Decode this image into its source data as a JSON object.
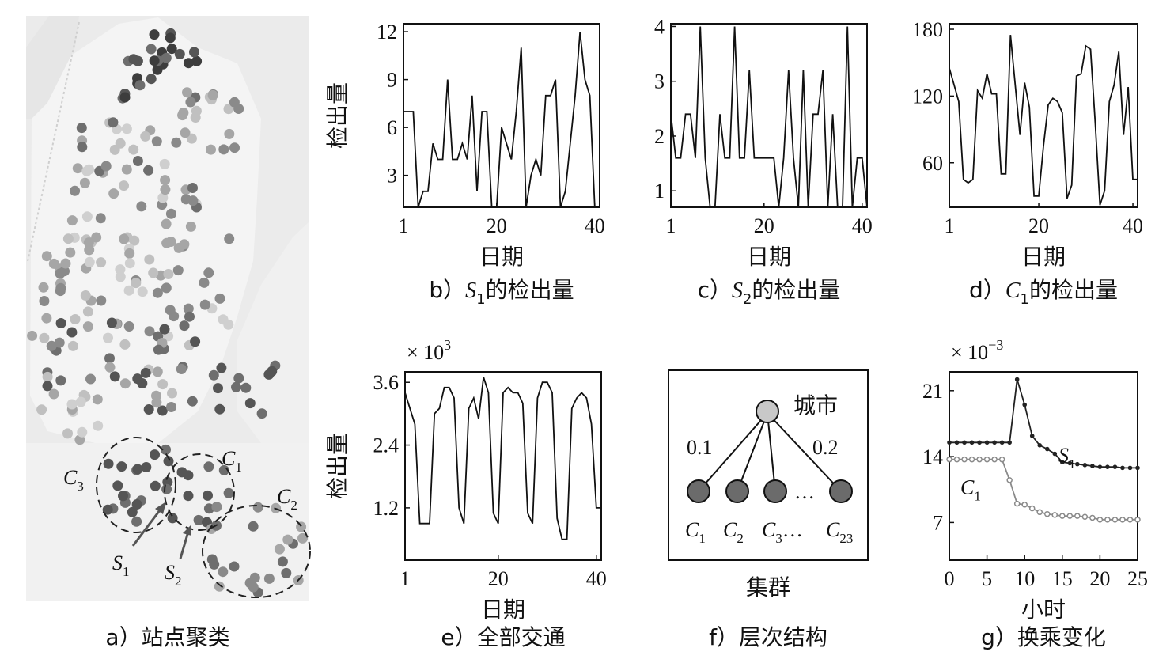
{
  "panel_a": {
    "caption": "a）站点聚类",
    "labels": [
      {
        "name": "C",
        "sub": "3"
      },
      {
        "name": "C",
        "sub": "1"
      },
      {
        "name": "C",
        "sub": "2"
      },
      {
        "name": "S",
        "sub": "1"
      },
      {
        "name": "S",
        "sub": "2"
      }
    ]
  },
  "chart_data": [
    {
      "id": "b",
      "type": "line",
      "caption": {
        "pre": "b）",
        "var": "S",
        "sub": "1",
        "post": "的检出量"
      },
      "xlabel": "日期",
      "ylabel": "检出量",
      "xlim": [
        1,
        41
      ],
      "ylim": [
        1,
        12.5
      ],
      "xticks": [
        1,
        20,
        40
      ],
      "yticks": [
        3,
        6,
        9,
        12
      ],
      "x": [
        1,
        2,
        3,
        4,
        5,
        6,
        7,
        8,
        9,
        10,
        11,
        12,
        13,
        14,
        15,
        16,
        17,
        18,
        19,
        20,
        21,
        22,
        23,
        24,
        25,
        26,
        27,
        28,
        29,
        30,
        31,
        32,
        33,
        34,
        35,
        36,
        37,
        38,
        39,
        40,
        41
      ],
      "values": [
        7,
        7,
        7,
        1,
        2,
        2,
        5,
        4,
        4,
        9,
        4,
        4,
        5,
        4,
        8,
        2,
        7,
        7,
        1,
        1,
        6,
        5,
        4,
        7,
        11,
        1,
        3,
        4,
        3,
        8,
        8,
        9,
        1,
        2,
        5,
        8,
        12,
        9,
        8,
        1,
        1
      ]
    },
    {
      "id": "c",
      "type": "line",
      "caption": {
        "pre": "c）",
        "var": "S",
        "sub": "2",
        "post": "的检出量"
      },
      "xlabel": "日期",
      "ylabel": "",
      "xlim": [
        1,
        41
      ],
      "ylim": [
        0.7,
        4.05
      ],
      "xticks": [
        1,
        20,
        40
      ],
      "yticks": [
        1,
        2,
        3,
        4
      ],
      "x": [
        1,
        2,
        3,
        4,
        5,
        6,
        7,
        8,
        9,
        10,
        11,
        12,
        13,
        14,
        15,
        16,
        17,
        18,
        19,
        20,
        21,
        22,
        23,
        24,
        25,
        26,
        27,
        28,
        29,
        30,
        31,
        32,
        33,
        34,
        35,
        36,
        37,
        38,
        39,
        40,
        41
      ],
      "values": [
        2.4,
        1.6,
        1.6,
        2.4,
        2.4,
        1.6,
        4,
        1.6,
        0.7,
        0.7,
        2.4,
        1.6,
        1.6,
        4,
        1.6,
        1.6,
        3.2,
        1.6,
        1.6,
        1.6,
        1.6,
        1.6,
        0.7,
        1.6,
        3.2,
        1.6,
        0.7,
        3.2,
        0.7,
        2.4,
        2.4,
        3.2,
        0.7,
        2.4,
        0.7,
        0.7,
        4,
        0.7,
        1.6,
        1.6,
        0.7
      ]
    },
    {
      "id": "d",
      "type": "line",
      "caption": {
        "pre": "d）",
        "var": "C",
        "sub": "1",
        "post": "的检出量"
      },
      "xlabel": "日期",
      "ylabel": "",
      "xlim": [
        1,
        41
      ],
      "ylim": [
        20,
        185
      ],
      "xticks": [
        1,
        20,
        40
      ],
      "yticks": [
        60,
        120,
        180
      ],
      "x": [
        1,
        2,
        3,
        4,
        5,
        6,
        7,
        8,
        9,
        10,
        11,
        12,
        13,
        14,
        15,
        16,
        17,
        18,
        19,
        20,
        21,
        22,
        23,
        24,
        25,
        26,
        27,
        28,
        29,
        30,
        31,
        32,
        33,
        34,
        35,
        36,
        37,
        38,
        39,
        40,
        41
      ],
      "values": [
        145,
        130,
        115,
        45,
        42,
        45,
        125,
        118,
        140,
        122,
        122,
        50,
        50,
        175,
        130,
        85,
        132,
        110,
        30,
        30,
        75,
        112,
        118,
        115,
        105,
        28,
        40,
        138,
        140,
        165,
        162,
        95,
        22,
        35,
        115,
        130,
        160,
        85,
        128,
        45,
        45
      ]
    },
    {
      "id": "e",
      "type": "line",
      "caption": {
        "pre": "e）全部交通"
      },
      "multiplier": {
        "base": "× 10",
        "exp": "3"
      },
      "xlabel": "日期",
      "ylabel": "检出量",
      "xlim": [
        1,
        41
      ],
      "ylim": [
        0.2,
        3.8
      ],
      "xticks": [
        1,
        20,
        40
      ],
      "yticks": [
        1.2,
        2.4,
        3.6
      ],
      "yticklabels": [
        "1.2",
        "2.4",
        "3.6"
      ],
      "x": [
        1,
        2,
        3,
        4,
        5,
        6,
        7,
        8,
        9,
        10,
        11,
        12,
        13,
        14,
        15,
        16,
        17,
        18,
        19,
        20,
        21,
        22,
        23,
        24,
        25,
        26,
        27,
        28,
        29,
        30,
        31,
        32,
        33,
        34,
        35,
        36,
        37,
        38,
        39,
        40,
        41
      ],
      "values": [
        3.4,
        3.1,
        2.8,
        0.9,
        0.9,
        0.9,
        3.0,
        3.1,
        3.5,
        3.5,
        3.3,
        1.2,
        0.9,
        3.1,
        3.3,
        2.9,
        3.7,
        3.4,
        1.1,
        0.9,
        3.4,
        3.5,
        3.4,
        3.4,
        3.2,
        1.1,
        0.9,
        3.3,
        3.6,
        3.6,
        3.4,
        1.0,
        0.6,
        0.6,
        3.1,
        3.3,
        3.4,
        3.3,
        2.8,
        1.2,
        1.2
      ]
    },
    {
      "id": "g",
      "type": "line",
      "caption": {
        "pre": "g）换乘变化"
      },
      "multiplier": {
        "base": "× 10",
        "exp": "−3"
      },
      "xlabel": "小时",
      "ylabel": "",
      "xlim": [
        0,
        25
      ],
      "ylim": [
        3,
        23
      ],
      "xticks": [
        0,
        5,
        10,
        15,
        20,
        25
      ],
      "yticks": [
        7,
        14,
        21
      ],
      "x": [
        0,
        1,
        2,
        3,
        4,
        5,
        6,
        7,
        8,
        9,
        10,
        11,
        12,
        13,
        14,
        15,
        16,
        17,
        18,
        19,
        20,
        21,
        22,
        23,
        24,
        25
      ],
      "series": [
        {
          "name": "S",
          "sub": "1",
          "color": "#222222",
          "values": [
            15.5,
            15.5,
            15.5,
            15.5,
            15.5,
            15.5,
            15.5,
            15.5,
            15.5,
            22.2,
            19.5,
            16.2,
            15.2,
            14.8,
            14.3,
            13.4,
            13.3,
            13.2,
            13.1,
            13.0,
            12.9,
            12.9,
            12.9,
            12.8,
            12.8,
            12.8
          ]
        },
        {
          "name": "C",
          "sub": "1",
          "color": "#8a8a8a",
          "values": [
            13.7,
            13.7,
            13.7,
            13.7,
            13.7,
            13.7,
            13.7,
            13.7,
            11.5,
            9.0,
            8.9,
            8.5,
            8.1,
            7.9,
            7.8,
            7.7,
            7.7,
            7.7,
            7.6,
            7.5,
            7.3,
            7.3,
            7.3,
            7.3,
            7.3,
            7.3
          ]
        }
      ]
    }
  ],
  "panel_f": {
    "caption": "f）层次结构",
    "root": "城市",
    "edge_left": "0.1",
    "edge_right": "0.2",
    "dots": "…",
    "children": [
      {
        "name": "C",
        "sub": "1"
      },
      {
        "name": "C",
        "sub": "2"
      },
      {
        "name": "C",
        "sub": "3"
      },
      {
        "name": "C",
        "sub": "23"
      }
    ],
    "xlabel": "集群"
  }
}
